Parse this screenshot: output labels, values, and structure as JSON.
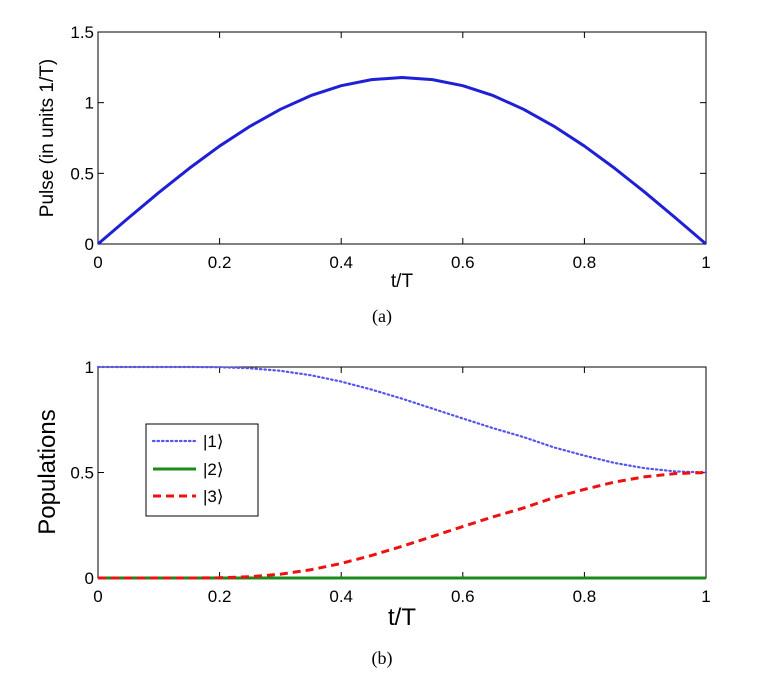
{
  "chart_data": [
    {
      "type": "line",
      "panel_caption": "(a)",
      "xlabel": "t/T",
      "ylabel": "Pulse  (in units 1/T)",
      "xlim": [
        0,
        1
      ],
      "ylim": [
        0,
        1.5
      ],
      "xticks": [
        "0",
        "0.2",
        "0.4",
        "0.6",
        "0.8",
        "1"
      ],
      "yticks": [
        "0",
        "0.5",
        "1",
        "1.5"
      ],
      "grid": false,
      "series": [
        {
          "color": "#1f1fd6",
          "style": "solid",
          "x": [
            0,
            0.05,
            0.1,
            0.15,
            0.2,
            0.25,
            0.3,
            0.35,
            0.4,
            0.45,
            0.5,
            0.55,
            0.6,
            0.65,
            0.7,
            0.75,
            0.8,
            0.85,
            0.9,
            0.95,
            1
          ],
          "y": [
            0,
            0.184,
            0.364,
            0.535,
            0.693,
            0.833,
            0.953,
            1.05,
            1.12,
            1.163,
            1.178,
            1.163,
            1.12,
            1.05,
            0.953,
            0.833,
            0.693,
            0.535,
            0.364,
            0.184,
            0
          ]
        }
      ]
    },
    {
      "type": "line",
      "panel_caption": "(b)",
      "xlabel": "t/T",
      "ylabel": "Populations",
      "xlim": [
        0,
        1
      ],
      "ylim": [
        0,
        1
      ],
      "xticks": [
        "0",
        "0.2",
        "0.4",
        "0.6",
        "0.8",
        "1"
      ],
      "yticks": [
        "0",
        "0.5",
        "1"
      ],
      "grid": false,
      "legend_position": "left",
      "series": [
        {
          "name": "|1⟩",
          "color": "#5555ee",
          "style": "dotted",
          "x": [
            0,
            0.05,
            0.1,
            0.15,
            0.2,
            0.25,
            0.3,
            0.35,
            0.4,
            0.45,
            0.5,
            0.55,
            0.6,
            0.65,
            0.7,
            0.75,
            0.8,
            0.85,
            0.9,
            0.95,
            1
          ],
          "y": [
            1,
            1,
            1,
            1,
            0.999,
            0.994,
            0.982,
            0.961,
            0.931,
            0.893,
            0.85,
            0.803,
            0.756,
            0.71,
            0.668,
            0.619,
            0.58,
            0.545,
            0.52,
            0.505,
            0.5
          ]
        },
        {
          "name": "|2⟩",
          "color": "#1a8a1a",
          "style": "solid",
          "x": [
            0,
            1
          ],
          "y": [
            0,
            0
          ]
        },
        {
          "name": "|3⟩",
          "color": "#ee1111",
          "style": "dashed",
          "x": [
            0,
            0.05,
            0.1,
            0.15,
            0.2,
            0.25,
            0.3,
            0.35,
            0.4,
            0.45,
            0.5,
            0.55,
            0.6,
            0.65,
            0.7,
            0.75,
            0.8,
            0.85,
            0.9,
            0.95,
            1
          ],
          "y": [
            0,
            0,
            0,
            0,
            0.001,
            0.006,
            0.018,
            0.039,
            0.069,
            0.107,
            0.15,
            0.197,
            0.244,
            0.29,
            0.332,
            0.381,
            0.42,
            0.455,
            0.48,
            0.495,
            0.5
          ]
        }
      ]
    }
  ]
}
